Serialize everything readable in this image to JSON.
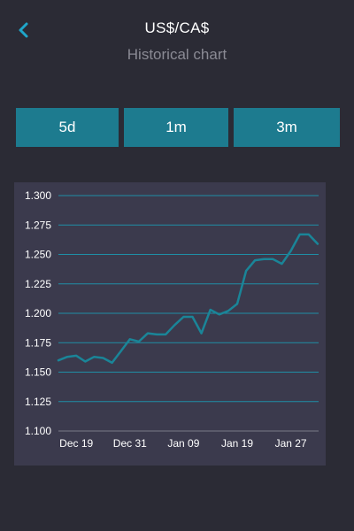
{
  "header": {
    "title": "US$/CA$",
    "subtitle": "Historical chart",
    "back_icon": "chevron-left-icon"
  },
  "colors": {
    "background": "#2b2b35",
    "accent": "#1d7b8f",
    "back_icon": "#1fa6c9",
    "chart_bg": "#3b3a4d",
    "gridline": "#1f8ea6",
    "line": "#1a8598"
  },
  "range_tabs": [
    {
      "label": "5d"
    },
    {
      "label": "1m"
    },
    {
      "label": "3m"
    }
  ],
  "chart_data": {
    "type": "line",
    "title": "",
    "xlabel": "",
    "ylabel": "",
    "ylim": [
      1.1,
      1.3
    ],
    "yticks": [
      "1.300",
      "1.275",
      "1.250",
      "1.225",
      "1.200",
      "1.175",
      "1.150",
      "1.125",
      "1.100"
    ],
    "xticks": [
      {
        "label": "Dec 19",
        "index": 2
      },
      {
        "label": "Dec 31",
        "index": 8
      },
      {
        "label": "Jan 09",
        "index": 14
      },
      {
        "label": "Jan 19",
        "index": 20
      },
      {
        "label": "Jan 27",
        "index": 26
      }
    ],
    "grid": true,
    "series": [
      {
        "values": [
          1.16,
          1.163,
          1.164,
          1.159,
          1.163,
          1.162,
          1.158,
          1.168,
          1.178,
          1.176,
          1.183,
          1.182,
          1.182,
          1.19,
          1.197,
          1.197,
          1.183,
          1.203,
          1.199,
          1.202,
          1.208,
          1.236,
          1.245,
          1.246,
          1.246,
          1.242,
          1.253,
          1.267,
          1.267,
          1.259
        ]
      }
    ]
  }
}
